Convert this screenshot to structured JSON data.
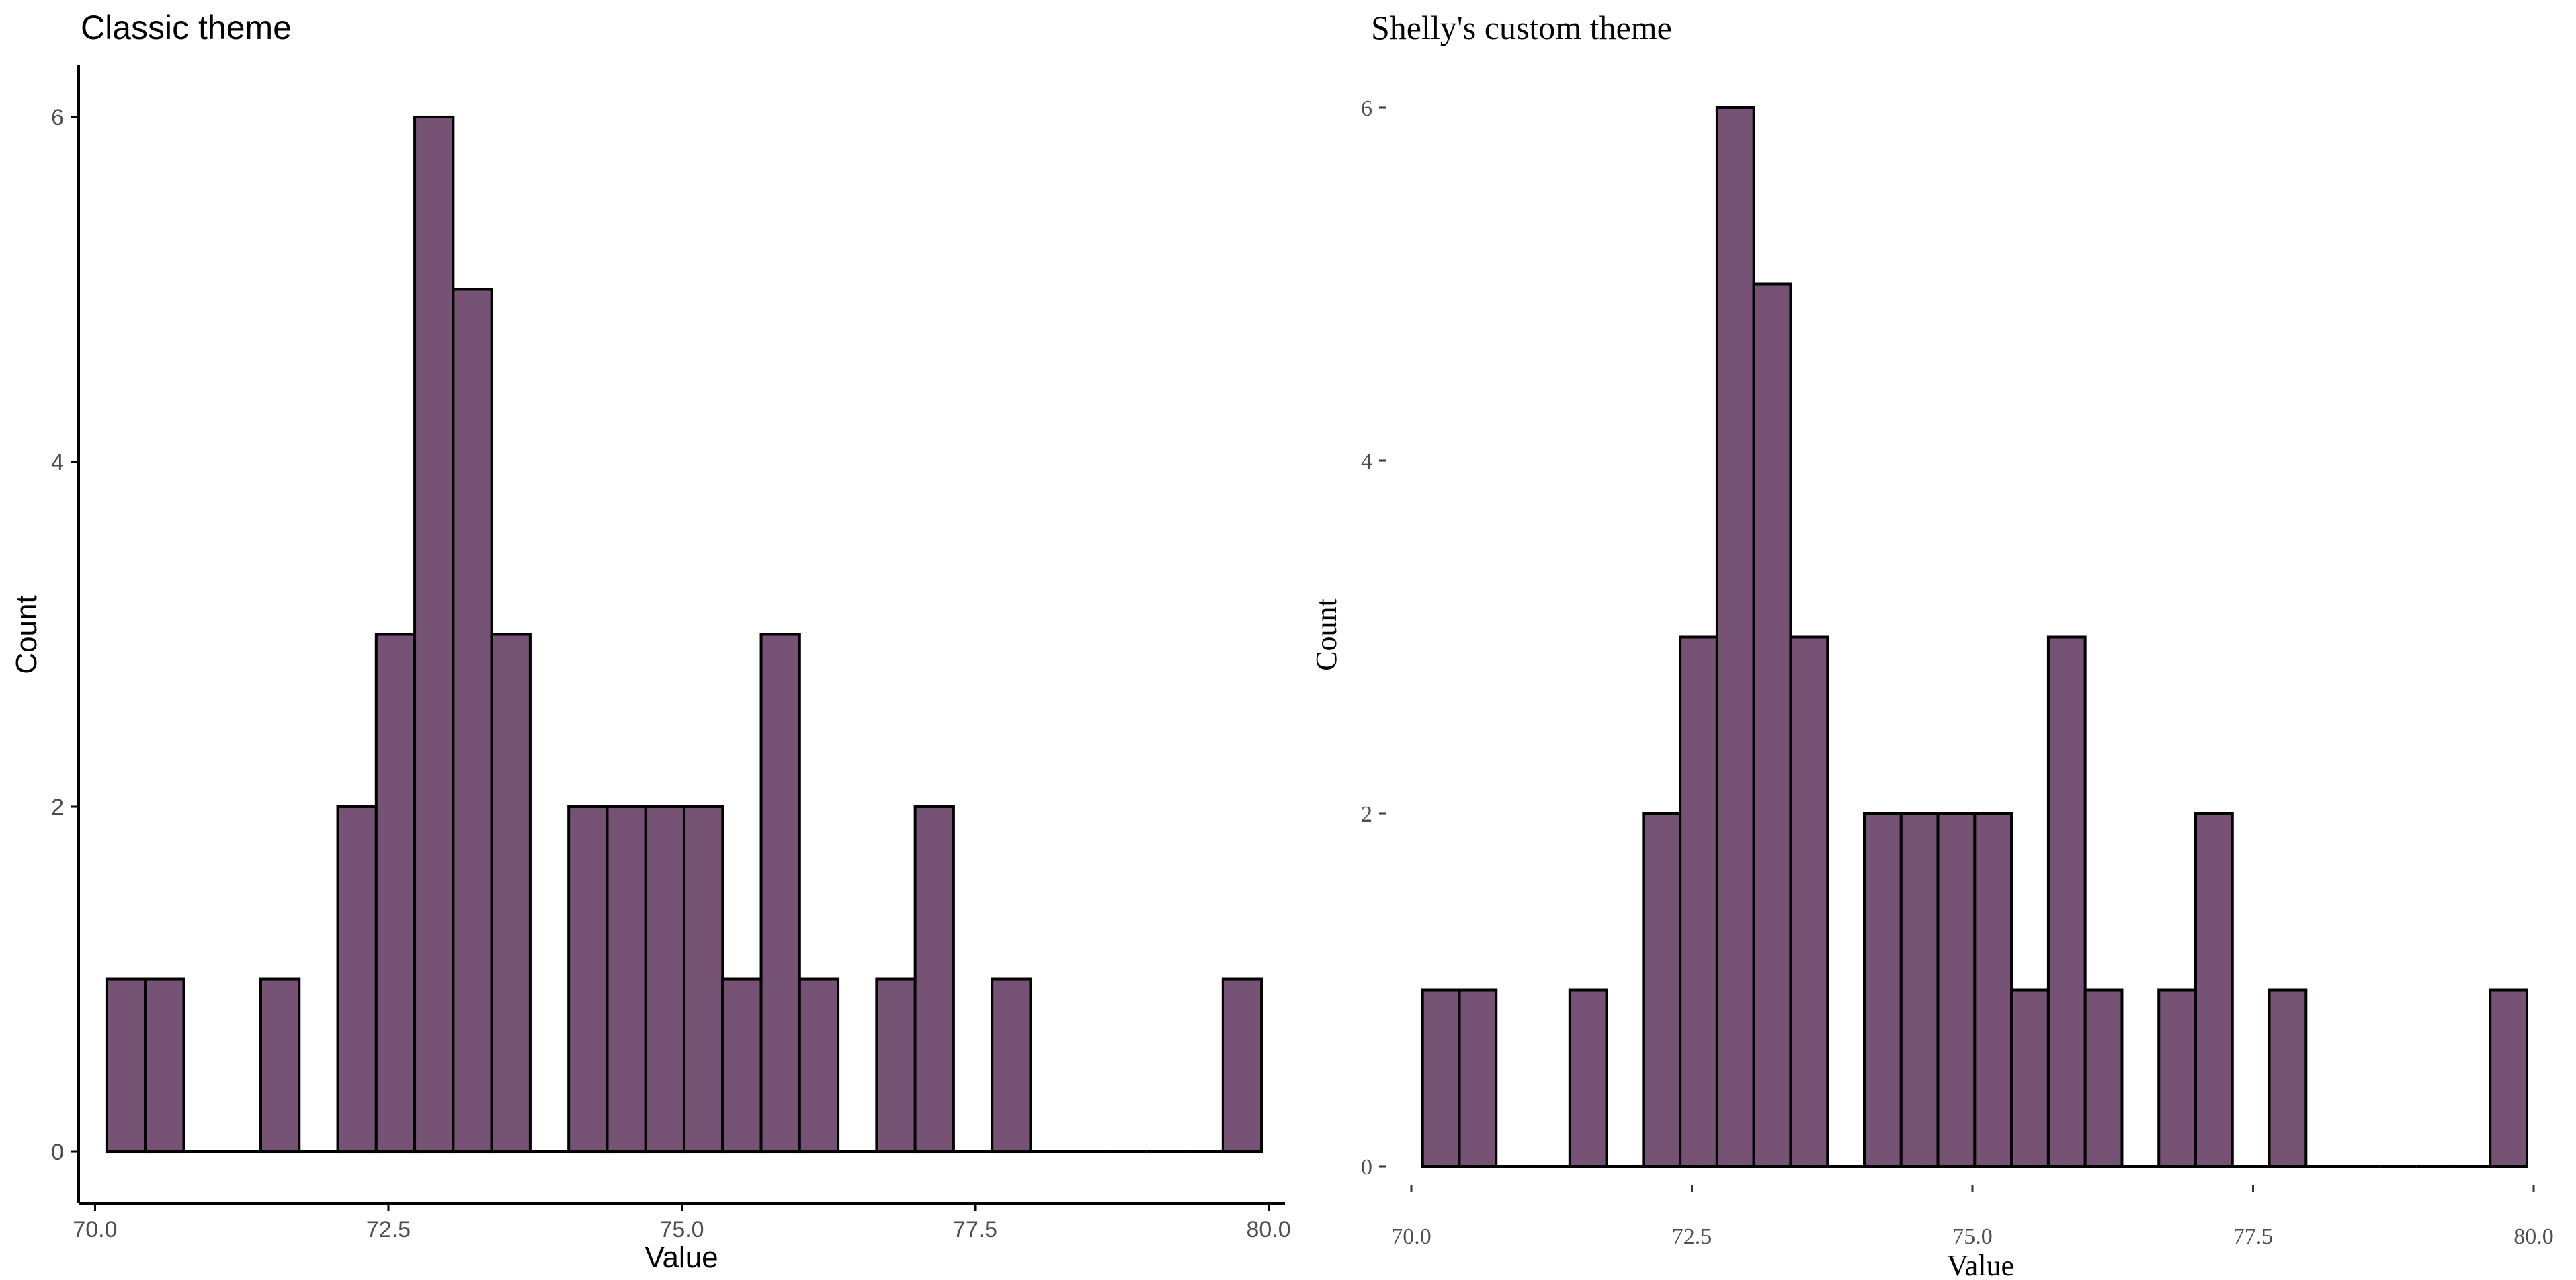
{
  "chart_data": [
    {
      "type": "bar",
      "title": "Classic theme",
      "xlabel": "Value",
      "ylabel": "Count",
      "xlim": [
        69.86,
        80.14
      ],
      "ylim": [
        -0.3,
        6.3
      ],
      "x_ticks": [
        70.0,
        72.5,
        75.0,
        77.5,
        80.0
      ],
      "x_tick_labels": [
        "70.0",
        "72.5",
        "75.0",
        "77.5",
        "80.0"
      ],
      "y_ticks": [
        0,
        2,
        4,
        6
      ],
      "y_tick_labels": [
        "0",
        "2",
        "4",
        "6"
      ],
      "bin_width": 0.328,
      "bin_start": 70.1,
      "values": [
        1,
        1,
        0,
        0,
        1,
        0,
        2,
        3,
        6,
        5,
        3,
        0,
        2,
        2,
        2,
        2,
        1,
        3,
        1,
        0,
        1,
        2,
        0,
        1,
        0,
        0,
        0,
        0,
        0,
        1
      ],
      "fill_color": "#765275",
      "outline_color": "#000000",
      "grid": false,
      "axis_lines": true
    },
    {
      "type": "bar",
      "title": "Shelly's custom theme",
      "xlabel": "Value",
      "ylabel": "Count",
      "xlim": [
        70.0,
        80.0
      ],
      "ylim": [
        0,
        6
      ],
      "x_ticks": [
        70.0,
        72.5,
        75.0,
        77.5,
        80.0
      ],
      "x_tick_labels": [
        "70.0",
        "72.5",
        "75.0",
        "77.5",
        "80.0"
      ],
      "y_ticks": [
        0,
        2,
        4,
        6
      ],
      "y_tick_labels": [
        "0",
        "2",
        "4",
        "6"
      ],
      "bin_width": 0.328,
      "bin_start": 70.1,
      "values": [
        1,
        1,
        0,
        0,
        1,
        0,
        2,
        3,
        6,
        5,
        3,
        0,
        2,
        2,
        2,
        2,
        1,
        3,
        1,
        0,
        1,
        2,
        0,
        1,
        0,
        0,
        0,
        0,
        0,
        1
      ],
      "fill_color": "#765275",
      "outline_color": "#000000",
      "grid": false,
      "axis_lines": false
    }
  ]
}
